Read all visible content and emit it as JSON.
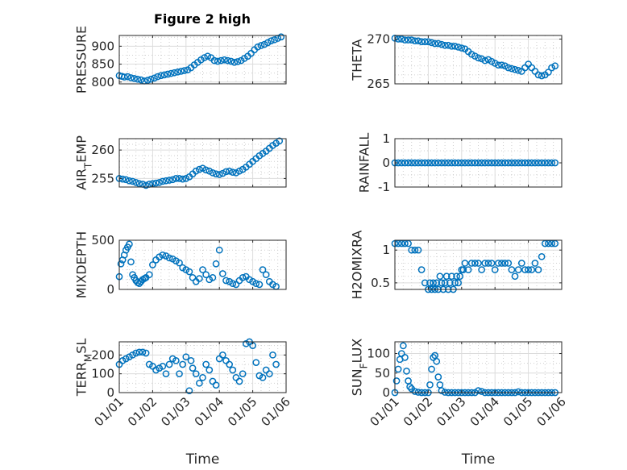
{
  "title": "Figure 2 high",
  "marker_color": "#0072BD",
  "x_ticks": [
    "01/01",
    "01/02",
    "01/03",
    "01/04",
    "01/05",
    "01/06"
  ],
  "chart_data": [
    {
      "type": "scatter",
      "ylabel": "PRESSURE",
      "xlabel": "",
      "xlim": [
        0,
        5
      ],
      "ylim": [
        795,
        930
      ],
      "yticks": [
        800,
        850,
        900
      ],
      "yticklabels": [
        "800",
        "850",
        "900"
      ],
      "ygrid_minor": [
        825,
        875,
        925
      ],
      "x": [
        0.0,
        0.08,
        0.15,
        0.25,
        0.35,
        0.45,
        0.55,
        0.65,
        0.75,
        0.85,
        0.95,
        1.05,
        1.15,
        1.25,
        1.35,
        1.45,
        1.55,
        1.65,
        1.75,
        1.85,
        1.95,
        2.05,
        2.15,
        2.25,
        2.35,
        2.45,
        2.55,
        2.65,
        2.75,
        2.85,
        2.95,
        3.05,
        3.15,
        3.25,
        3.35,
        3.45,
        3.55,
        3.65,
        3.75,
        3.85,
        3.95,
        4.05,
        4.15,
        4.25,
        4.35,
        4.45,
        4.55,
        4.65,
        4.75,
        4.85
      ],
      "y": [
        818,
        816,
        814,
        815,
        812,
        810,
        808,
        806,
        803,
        805,
        808,
        811,
        815,
        818,
        820,
        822,
        824,
        826,
        828,
        830,
        832,
        834,
        840,
        848,
        855,
        862,
        868,
        872,
        868,
        860,
        858,
        860,
        862,
        860,
        858,
        855,
        857,
        860,
        866,
        872,
        880,
        890,
        898,
        902,
        905,
        910,
        915,
        918,
        922,
        926
      ]
    },
    {
      "type": "scatter",
      "ylabel": "THETA",
      "xlabel": "",
      "xlim": [
        0,
        5
      ],
      "ylim": [
        265,
        270.4
      ],
      "yticks": [
        265,
        270
      ],
      "yticklabels": [
        "265",
        "270"
      ],
      "ygrid_minor": [
        266,
        267,
        268,
        269
      ],
      "x": [
        0.0,
        0.1,
        0.2,
        0.3,
        0.4,
        0.5,
        0.6,
        0.7,
        0.8,
        0.9,
        1.0,
        1.1,
        1.2,
        1.3,
        1.4,
        1.5,
        1.6,
        1.7,
        1.8,
        1.9,
        2.0,
        2.1,
        2.2,
        2.3,
        2.4,
        2.5,
        2.6,
        2.7,
        2.8,
        2.9,
        3.0,
        3.1,
        3.2,
        3.3,
        3.4,
        3.5,
        3.6,
        3.7,
        3.8,
        3.9,
        4.0,
        4.1,
        4.2,
        4.3,
        4.4,
        4.5,
        4.6,
        4.7,
        4.8
      ],
      "y": [
        270.1,
        270.0,
        270.0,
        269.9,
        269.9,
        269.9,
        269.8,
        269.8,
        269.7,
        269.7,
        269.7,
        269.6,
        269.5,
        269.5,
        269.4,
        269.3,
        269.3,
        269.2,
        269.2,
        269.1,
        269.0,
        268.9,
        268.6,
        268.3,
        268.1,
        267.9,
        267.8,
        267.6,
        267.7,
        267.5,
        267.3,
        267.1,
        267.1,
        267.0,
        266.8,
        266.7,
        266.6,
        266.5,
        266.4,
        266.8,
        267.2,
        266.8,
        266.4,
        266.0,
        265.9,
        266.0,
        266.3,
        266.8,
        267.0
      ]
    },
    {
      "type": "scatter",
      "ylabel": "AIR_TEMP",
      "xlabel": "",
      "xlim": [
        0,
        5
      ],
      "ylim": [
        253.5,
        262
      ],
      "yticks": [
        255,
        260
      ],
      "yticklabels": [
        "255",
        "260"
      ],
      "ygrid_minor": [
        256,
        257,
        258,
        259,
        261
      ],
      "x": [
        0.0,
        0.1,
        0.2,
        0.3,
        0.4,
        0.5,
        0.6,
        0.7,
        0.8,
        0.9,
        1.0,
        1.1,
        1.2,
        1.3,
        1.4,
        1.5,
        1.6,
        1.7,
        1.8,
        1.9,
        2.0,
        2.1,
        2.2,
        2.3,
        2.4,
        2.5,
        2.6,
        2.7,
        2.8,
        2.9,
        3.0,
        3.1,
        3.2,
        3.3,
        3.4,
        3.5,
        3.6,
        3.7,
        3.8,
        3.9,
        4.0,
        4.1,
        4.2,
        4.3,
        4.4,
        4.5,
        4.6,
        4.7,
        4.8
      ],
      "y": [
        255.0,
        254.9,
        254.8,
        254.6,
        254.5,
        254.3,
        254.1,
        254.0,
        253.8,
        254.0,
        254.1,
        254.2,
        254.3,
        254.5,
        254.6,
        254.7,
        254.8,
        255.0,
        255.0,
        254.9,
        255.0,
        255.3,
        255.8,
        256.3,
        256.6,
        256.8,
        256.5,
        256.3,
        256.0,
        255.8,
        255.7,
        255.9,
        256.2,
        256.3,
        256.1,
        256.0,
        256.3,
        256.6,
        257.0,
        257.5,
        258.0,
        258.5,
        259.0,
        259.4,
        259.8,
        260.3,
        260.8,
        261.2,
        261.6
      ]
    },
    {
      "type": "scatter",
      "ylabel": "RAINFALL",
      "xlabel": "",
      "xlim": [
        0,
        5
      ],
      "ylim": [
        -1,
        1
      ],
      "yticks": [
        -1,
        0,
        1
      ],
      "yticklabels": [
        "-1",
        "0",
        "1"
      ],
      "ygrid_minor": [
        -0.5,
        0.5
      ],
      "x": [
        0.0,
        0.1,
        0.2,
        0.3,
        0.4,
        0.5,
        0.6,
        0.7,
        0.8,
        0.9,
        1.0,
        1.1,
        1.2,
        1.3,
        1.4,
        1.5,
        1.6,
        1.7,
        1.8,
        1.9,
        2.0,
        2.1,
        2.2,
        2.3,
        2.4,
        2.5,
        2.6,
        2.7,
        2.8,
        2.9,
        3.0,
        3.1,
        3.2,
        3.3,
        3.4,
        3.5,
        3.6,
        3.7,
        3.8,
        3.9,
        4.0,
        4.1,
        4.2,
        4.3,
        4.4,
        4.5,
        4.6,
        4.7,
        4.8
      ],
      "y": [
        0,
        0,
        0,
        0,
        0,
        0,
        0,
        0,
        0,
        0,
        0,
        0,
        0,
        0,
        0,
        0,
        0,
        0,
        0,
        0,
        0,
        0,
        0,
        0,
        0,
        0,
        0,
        0,
        0,
        0,
        0,
        0,
        0,
        0,
        0,
        0,
        0,
        0,
        0,
        0,
        0,
        0,
        0,
        0,
        0,
        0,
        0,
        0,
        0
      ]
    },
    {
      "type": "scatter",
      "ylabel": "MIXDEPTH",
      "xlabel": "",
      "xlim": [
        0,
        5
      ],
      "ylim": [
        0,
        500
      ],
      "yticks": [
        0,
        500
      ],
      "yticklabels": [
        "0",
        "500"
      ],
      "ygrid_minor": [
        100,
        200,
        300,
        400
      ],
      "x": [
        0.0,
        0.05,
        0.1,
        0.15,
        0.2,
        0.25,
        0.3,
        0.35,
        0.4,
        0.45,
        0.5,
        0.55,
        0.6,
        0.65,
        0.7,
        0.75,
        0.8,
        0.9,
        1.0,
        1.1,
        1.2,
        1.3,
        1.4,
        1.5,
        1.6,
        1.7,
        1.8,
        1.9,
        2.0,
        2.1,
        2.2,
        2.3,
        2.4,
        2.5,
        2.6,
        2.7,
        2.8,
        2.9,
        3.0,
        3.1,
        3.2,
        3.3,
        3.4,
        3.5,
        3.6,
        3.7,
        3.8,
        3.9,
        4.0,
        4.1,
        4.2,
        4.3,
        4.4,
        4.5,
        4.6,
        4.7
      ],
      "y": [
        130,
        260,
        300,
        350,
        400,
        430,
        460,
        280,
        150,
        120,
        90,
        70,
        60,
        80,
        100,
        110,
        120,
        150,
        250,
        300,
        330,
        350,
        340,
        320,
        310,
        290,
        270,
        220,
        200,
        180,
        120,
        80,
        110,
        200,
        150,
        100,
        120,
        260,
        400,
        160,
        90,
        80,
        60,
        50,
        90,
        120,
        130,
        100,
        80,
        60,
        50,
        200,
        150,
        80,
        50,
        30
      ]
    },
    {
      "type": "scatter",
      "ylabel": "H2OMIXRA",
      "xlabel": "",
      "xlim": [
        0,
        5
      ],
      "ylim": [
        0.4,
        1.15
      ],
      "yticks": [
        0.5,
        1
      ],
      "yticklabels": [
        "0.5",
        "1"
      ],
      "ygrid_minor": [
        0.6,
        0.7,
        0.8,
        0.9,
        1.1
      ],
      "x": [
        0.0,
        0.1,
        0.2,
        0.3,
        0.4,
        0.5,
        0.6,
        0.7,
        0.8,
        0.9,
        1.0,
        1.05,
        1.1,
        1.15,
        1.2,
        1.25,
        1.3,
        1.35,
        1.4,
        1.45,
        1.5,
        1.55,
        1.6,
        1.65,
        1.7,
        1.75,
        1.8,
        1.85,
        1.9,
        1.95,
        2.0,
        2.05,
        2.1,
        2.2,
        2.3,
        2.4,
        2.5,
        2.6,
        2.7,
        2.8,
        2.9,
        3.0,
        3.1,
        3.2,
        3.3,
        3.4,
        3.5,
        3.6,
        3.7,
        3.8,
        3.9,
        4.0,
        4.1,
        4.2,
        4.3,
        4.4,
        4.5,
        4.6,
        4.7,
        4.8
      ],
      "y": [
        1.1,
        1.1,
        1.1,
        1.1,
        1.1,
        1.0,
        1.0,
        1.0,
        0.7,
        0.5,
        0.4,
        0.5,
        0.4,
        0.5,
        0.4,
        0.5,
        0.4,
        0.6,
        0.5,
        0.4,
        0.5,
        0.6,
        0.4,
        0.5,
        0.6,
        0.4,
        0.5,
        0.6,
        0.5,
        0.6,
        0.7,
        0.7,
        0.8,
        0.7,
        0.8,
        0.8,
        0.8,
        0.7,
        0.8,
        0.8,
        0.8,
        0.7,
        0.8,
        0.8,
        0.8,
        0.8,
        0.7,
        0.6,
        0.7,
        0.8,
        0.7,
        0.7,
        0.7,
        0.8,
        0.7,
        0.9,
        1.1,
        1.1,
        1.1,
        1.1
      ]
    },
    {
      "type": "scatter",
      "ylabel": "TERR_MSL",
      "xlabel": "Time",
      "xlim": [
        0,
        5
      ],
      "ylim": [
        0,
        270
      ],
      "yticks": [
        0,
        100,
        200
      ],
      "yticklabels": [
        "0",
        "100",
        "200"
      ],
      "ygrid_minor": [
        50,
        150,
        250
      ],
      "x": [
        0.0,
        0.1,
        0.2,
        0.3,
        0.4,
        0.5,
        0.6,
        0.7,
        0.8,
        0.9,
        1.0,
        1.1,
        1.2,
        1.3,
        1.4,
        1.5,
        1.6,
        1.7,
        1.8,
        1.9,
        2.0,
        2.1,
        2.15,
        2.2,
        2.3,
        2.4,
        2.5,
        2.6,
        2.7,
        2.8,
        2.9,
        3.0,
        3.1,
        3.2,
        3.3,
        3.4,
        3.5,
        3.6,
        3.7,
        3.8,
        3.9,
        4.0,
        4.1,
        4.2,
        4.3,
        4.4,
        4.5,
        4.6,
        4.7
      ],
      "y": [
        150,
        170,
        180,
        190,
        200,
        210,
        215,
        215,
        210,
        150,
        140,
        120,
        130,
        140,
        100,
        150,
        180,
        170,
        100,
        150,
        190,
        10,
        170,
        130,
        100,
        50,
        80,
        150,
        120,
        60,
        40,
        180,
        200,
        170,
        150,
        120,
        80,
        60,
        100,
        260,
        270,
        250,
        160,
        90,
        80,
        120,
        100,
        200,
        150
      ]
    },
    {
      "type": "scatter",
      "ylabel": "SUN_FLUX",
      "xlabel": "Time",
      "xlim": [
        0,
        5
      ],
      "ylim": [
        0,
        130
      ],
      "yticks": [
        0,
        50,
        100
      ],
      "yticklabels": [
        "0",
        "50",
        "100"
      ],
      "ygrid_minor": [
        25,
        75,
        125
      ],
      "x": [
        0.0,
        0.05,
        0.1,
        0.15,
        0.2,
        0.25,
        0.3,
        0.35,
        0.4,
        0.45,
        0.5,
        0.6,
        0.7,
        0.8,
        0.9,
        1.0,
        1.05,
        1.1,
        1.15,
        1.2,
        1.25,
        1.3,
        1.35,
        1.4,
        1.5,
        1.6,
        1.7,
        1.8,
        1.9,
        2.0,
        2.1,
        2.2,
        2.3,
        2.4,
        2.5,
        2.6,
        2.7,
        2.8,
        2.9,
        3.0,
        3.1,
        3.2,
        3.3,
        3.4,
        3.5,
        3.6,
        3.7,
        3.8,
        3.9,
        4.0,
        4.1,
        4.2,
        4.3,
        4.4,
        4.5,
        4.6,
        4.7,
        4.8
      ],
      "y": [
        0,
        30,
        60,
        85,
        100,
        120,
        90,
        55,
        30,
        15,
        10,
        3,
        1,
        0,
        0,
        0,
        20,
        60,
        90,
        95,
        80,
        40,
        20,
        5,
        1,
        0,
        0,
        0,
        0,
        0,
        0,
        0,
        0,
        0,
        5,
        3,
        0,
        0,
        0,
        0,
        0,
        0,
        0,
        0,
        0,
        0,
        2,
        0,
        0,
        0,
        0,
        0,
        0,
        0,
        0,
        0,
        0,
        0
      ]
    }
  ]
}
